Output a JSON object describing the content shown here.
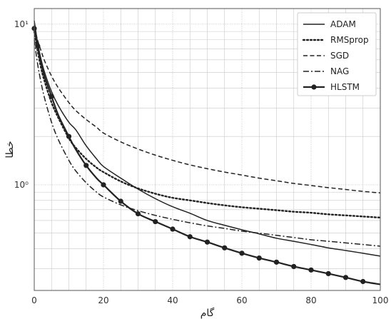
{
  "chart_data": {
    "type": "line",
    "xlabel": "گام",
    "ylabel": "خطا",
    "xlim": [
      0,
      100
    ],
    "ylim": [
      0.22,
      12.5
    ],
    "yscale": "log",
    "xticks": [
      0,
      20,
      40,
      60,
      80,
      100
    ],
    "xtick_labels": [
      "0",
      "20",
      "40",
      "60",
      "80",
      "100"
    ],
    "yticks": [
      1,
      10
    ],
    "ytick_labels": [
      "10⁰",
      "10¹"
    ],
    "grid": true,
    "legend_position": "top-right",
    "series": [
      {
        "name": "ADAM",
        "style": "solid",
        "x": [
          0,
          1,
          2,
          3,
          5,
          7,
          10,
          12,
          15,
          18,
          20,
          25,
          30,
          35,
          40,
          45,
          50,
          55,
          60,
          65,
          70,
          75,
          80,
          85,
          90,
          95,
          100
        ],
        "y": [
          10.5,
          7.6,
          6.0,
          5.0,
          3.8,
          3.1,
          2.45,
          2.2,
          1.75,
          1.45,
          1.3,
          1.1,
          0.94,
          0.82,
          0.73,
          0.665,
          0.6,
          0.56,
          0.525,
          0.495,
          0.465,
          0.445,
          0.425,
          0.405,
          0.39,
          0.375,
          0.36
        ]
      },
      {
        "name": "RMSprop",
        "style": "dotted",
        "x": [
          0,
          1,
          2,
          3,
          5,
          7,
          10,
          12,
          15,
          18,
          20,
          25,
          30,
          35,
          40,
          45,
          50,
          55,
          60,
          65,
          70,
          75,
          80,
          85,
          90,
          95,
          100
        ],
        "y": [
          9.0,
          6.8,
          5.3,
          4.4,
          3.25,
          2.6,
          1.95,
          1.7,
          1.45,
          1.28,
          1.2,
          1.05,
          0.95,
          0.88,
          0.83,
          0.8,
          0.77,
          0.745,
          0.725,
          0.71,
          0.695,
          0.68,
          0.67,
          0.655,
          0.645,
          0.635,
          0.625
        ]
      },
      {
        "name": "SGD",
        "style": "dashed",
        "x": [
          0,
          1,
          2,
          3,
          5,
          7,
          10,
          12,
          15,
          18,
          20,
          25,
          30,
          35,
          40,
          45,
          50,
          55,
          60,
          65,
          70,
          75,
          80,
          85,
          90,
          95,
          100
        ],
        "y": [
          9.6,
          7.9,
          6.8,
          5.9,
          4.75,
          4.0,
          3.25,
          2.9,
          2.55,
          2.28,
          2.1,
          1.85,
          1.67,
          1.53,
          1.42,
          1.33,
          1.26,
          1.2,
          1.15,
          1.1,
          1.06,
          1.02,
          0.99,
          0.96,
          0.935,
          0.91,
          0.89
        ]
      },
      {
        "name": "NAG",
        "style": "dashdot",
        "x": [
          0,
          1,
          2,
          3,
          5,
          7,
          10,
          12,
          15,
          18,
          20,
          25,
          30,
          35,
          40,
          45,
          50,
          55,
          60,
          65,
          70,
          75,
          80,
          85,
          90,
          95,
          100
        ],
        "y": [
          8.0,
          5.6,
          4.3,
          3.45,
          2.45,
          1.9,
          1.42,
          1.22,
          1.03,
          0.9,
          0.84,
          0.75,
          0.69,
          0.645,
          0.61,
          0.58,
          0.555,
          0.535,
          0.515,
          0.5,
          0.485,
          0.47,
          0.455,
          0.445,
          0.435,
          0.425,
          0.415
        ]
      },
      {
        "name": "HLSTM",
        "style": "solid-marker",
        "x": [
          0,
          1,
          2,
          3,
          5,
          7,
          10,
          12,
          15,
          18,
          20,
          25,
          30,
          35,
          40,
          45,
          50,
          55,
          60,
          65,
          70,
          75,
          80,
          85,
          90,
          95,
          100
        ],
        "y": [
          9.4,
          7.3,
          5.7,
          4.7,
          3.55,
          2.7,
          2.0,
          1.66,
          1.32,
          1.1,
          1.0,
          0.79,
          0.66,
          0.59,
          0.53,
          0.475,
          0.44,
          0.405,
          0.375,
          0.35,
          0.33,
          0.31,
          0.295,
          0.28,
          0.265,
          0.25,
          0.24
        ],
        "marker_x": [
          0,
          1,
          5,
          10,
          15,
          20,
          25,
          30,
          35,
          40,
          45,
          50,
          55,
          60,
          65,
          70,
          75,
          80,
          85,
          90,
          95
        ]
      }
    ]
  },
  "colors": {
    "line": "#222222",
    "grid": "#c8c8c8",
    "frame": "#555555"
  }
}
